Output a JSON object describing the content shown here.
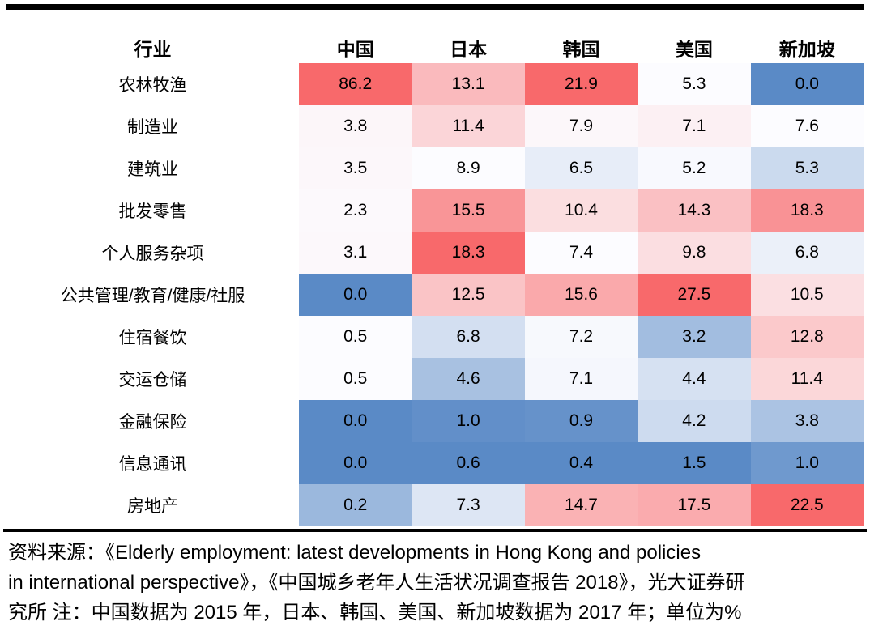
{
  "chart_data": {
    "type": "heatmap",
    "title": "",
    "corner_label": "行业",
    "columns": [
      "中国",
      "日本",
      "韩国",
      "美国",
      "新加坡"
    ],
    "rows": [
      "农林牧渔",
      "制造业",
      "建筑业",
      "批发零售",
      "个人服务杂项",
      "公共管理/教育/健康/社服",
      "住宿餐饮",
      "交运仓储",
      "金融保险",
      "信息通讯",
      "房地产"
    ],
    "values": [
      [
        86.2,
        13.1,
        21.9,
        5.3,
        0.0
      ],
      [
        3.8,
        11.4,
        7.9,
        7.1,
        7.6
      ],
      [
        3.5,
        8.9,
        6.5,
        5.2,
        5.3
      ],
      [
        2.3,
        15.5,
        10.4,
        14.3,
        18.3
      ],
      [
        3.1,
        18.3,
        7.4,
        9.8,
        6.8
      ],
      [
        0.0,
        12.5,
        15.6,
        27.5,
        10.5
      ],
      [
        0.5,
        6.8,
        7.2,
        3.2,
        12.8
      ],
      [
        0.5,
        4.6,
        7.1,
        4.4,
        11.4
      ],
      [
        0.0,
        1.0,
        0.9,
        4.2,
        3.8
      ],
      [
        0.0,
        0.6,
        0.4,
        1.5,
        1.0
      ],
      [
        0.2,
        7.3,
        14.7,
        17.5,
        22.5
      ]
    ],
    "unit": "%",
    "value_decimals": 1,
    "legend_position": "none",
    "grid": false,
    "color_scale": {
      "mode": "per-column: min -> median -> max",
      "low_color": "#5A8AC6",
      "mid_color": "#FCFCFF",
      "high_color": "#F8696B"
    }
  },
  "text_color": "#000000",
  "rule_color": "#000000",
  "footnote": {
    "lines": [
      "资料来源：《Elderly employment: latest developments in Hong Kong and policies",
      "in international perspective》，《中国城乡老年人生活状况调查报告 2018》，光大证券研",
      "究所 注：中国数据为 2015 年，日本、韩国、美国、新加坡数据为 2017 年；单位为%"
    ]
  }
}
